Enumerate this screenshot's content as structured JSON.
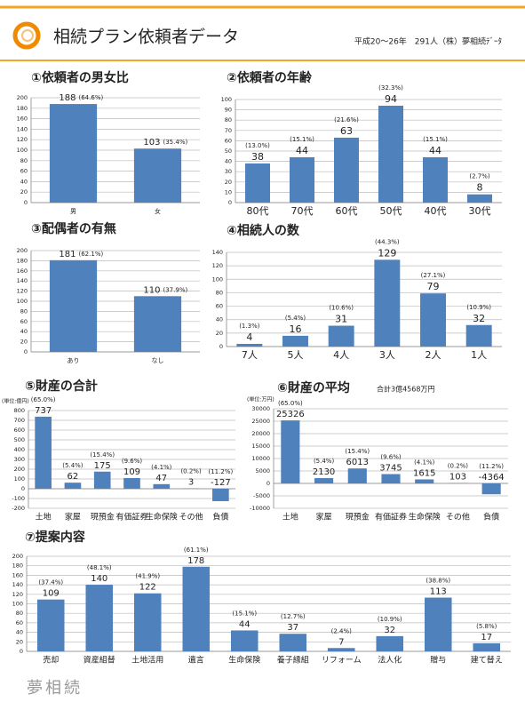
{
  "header": {
    "title": "相続プラン依頼者データ",
    "subtitle": "平成20～26年　291人（株）夢相続ﾃﾞｰﾀ"
  },
  "footer": "夢相続",
  "chart_data": [
    {
      "type": "bar",
      "title": "①依頼者の男女比",
      "categories": [
        "男",
        "女"
      ],
      "values": [
        188,
        103
      ],
      "share_labels": [
        "(64.6%)",
        "(35.4%)"
      ],
      "color": "#4f81bd",
      "ylim": [
        0,
        200
      ],
      "yticks": [
        0,
        20,
        40,
        60,
        80,
        100,
        120,
        140,
        160,
        180,
        200
      ],
      "grid": true
    },
    {
      "type": "bar",
      "title": "②依頼者の年齢",
      "categories": [
        "80代",
        "70代",
        "60代",
        "50代",
        "40代",
        "30代"
      ],
      "values": [
        38,
        44,
        63,
        94,
        44,
        8
      ],
      "share_labels": [
        "(13.0%)",
        "(15.1%)",
        "(21.6%)",
        "(32.3%)",
        "(15.1%)",
        "(2.7%)"
      ],
      "color": "#4f81bd",
      "ylim": [
        0,
        100
      ],
      "yticks": [
        0,
        10,
        20,
        30,
        40,
        50,
        60,
        70,
        80,
        90,
        100
      ],
      "grid": true
    },
    {
      "type": "bar",
      "title": "③配偶者の有無",
      "categories": [
        "あり",
        "なし"
      ],
      "values": [
        181,
        110
      ],
      "share_labels": [
        "(62.1%)",
        "(37.9%)"
      ],
      "color": "#4f81bd",
      "ylim": [
        0,
        200
      ],
      "yticks": [
        0,
        20,
        40,
        60,
        80,
        100,
        120,
        140,
        160,
        180,
        200
      ],
      "grid": true
    },
    {
      "type": "bar",
      "title": "④相続人の数",
      "categories": [
        "7人",
        "5人",
        "4人",
        "3人",
        "2人",
        "1人"
      ],
      "values": [
        4,
        16,
        31,
        129,
        79,
        32
      ],
      "share_labels": [
        "(1.3%)",
        "(5.4%)",
        "(10.6%)",
        "(44.3%)",
        "(27.1%)",
        "(10.9%)"
      ],
      "color": "#4f81bd",
      "ylim": [
        0,
        140
      ],
      "yticks": [
        0,
        20,
        40,
        60,
        80,
        100,
        120,
        140
      ],
      "grid": true
    },
    {
      "type": "bar",
      "title": "⑤財産の合計",
      "unit_label": "(単位:億円)",
      "categories": [
        "土地",
        "家屋",
        "現預金",
        "有価証券",
        "生命保険",
        "その他",
        "負債"
      ],
      "values": [
        737,
        62,
        175,
        109,
        47,
        3,
        -127
      ],
      "share_labels": [
        "(65.0%)",
        "(5.4%)",
        "(15.4%)",
        "(9.6%)",
        "(4.1%)",
        "(0.2%)",
        "(11.2%)"
      ],
      "color": "#4f81bd",
      "ylim": [
        -200,
        800
      ],
      "yticks": [
        -200,
        -100,
        0,
        100,
        200,
        300,
        400,
        500,
        600,
        700,
        800
      ],
      "grid": true
    },
    {
      "type": "bar",
      "title": "⑥財産の平均",
      "note": "合計3億4568万円",
      "unit_label": "(単位:万円)",
      "categories": [
        "土地",
        "家屋",
        "現預金",
        "有価証券",
        "生命保険",
        "その他",
        "負債"
      ],
      "values": [
        25326,
        2130,
        6013,
        3745,
        1615,
        103,
        -4364
      ],
      "share_labels": [
        "(65.0%)",
        "(5.4%)",
        "(15.4%)",
        "(9.6%)",
        "(4.1%)",
        "(0.2%)",
        "(11.2%)"
      ],
      "color": "#4f81bd",
      "ylim": [
        -10000,
        30000
      ],
      "yticks": [
        -10000,
        -5000,
        0,
        5000,
        10000,
        15000,
        20000,
        25000,
        30000
      ],
      "grid": true
    },
    {
      "type": "bar",
      "title": "⑦提案内容",
      "categories": [
        "売却",
        "資産組替",
        "土地活用",
        "遺言",
        "生命保険",
        "養子縁組",
        "リフォーム",
        "法人化",
        "贈与",
        "建て替え"
      ],
      "values": [
        109,
        140,
        122,
        178,
        44,
        37,
        7,
        32,
        113,
        17
      ],
      "share_labels": [
        "(37.4%)",
        "(48.1%)",
        "(41.9%)",
        "(61.1%)",
        "(15.1%)",
        "(12.7%)",
        "(2.4%)",
        "(10.9%)",
        "(38.8%)",
        "(5.8%)"
      ],
      "color": "#4f81bd",
      "ylim": [
        0,
        200
      ],
      "yticks": [
        0,
        20,
        40,
        60,
        80,
        100,
        120,
        140,
        160,
        180,
        200
      ],
      "grid": true
    }
  ]
}
